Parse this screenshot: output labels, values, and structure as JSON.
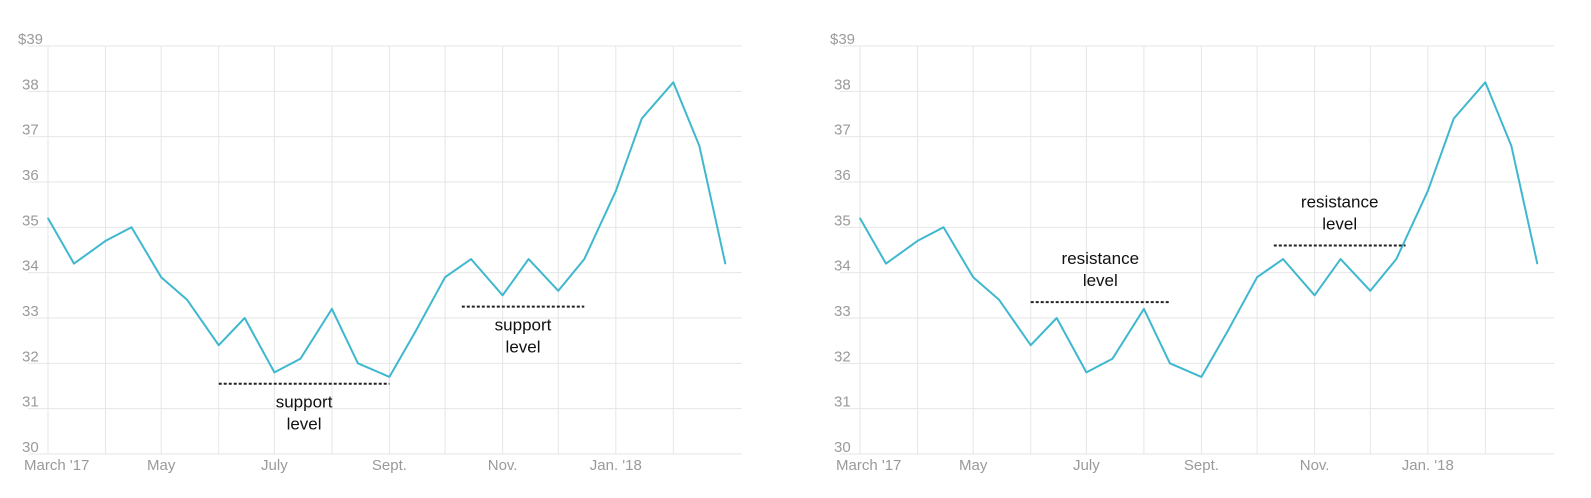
{
  "chart_data": [
    {
      "type": "line",
      "y_tick_labels": [
        "$39",
        "38",
        "37",
        "36",
        "35",
        "34",
        "33",
        "32",
        "31",
        "30"
      ],
      "x_tick_labels": [
        "March '17",
        "May",
        "July",
        "Sept.",
        "Nov.",
        "Jan. '18"
      ],
      "ylim": [
        30,
        39
      ],
      "grid": true,
      "line_color": "#3fb8cf",
      "x": [
        "2017-03-01",
        "2017-03-15",
        "2017-04-01",
        "2017-04-15",
        "2017-05-01",
        "2017-05-15",
        "2017-06-01",
        "2017-06-15",
        "2017-07-01",
        "2017-07-15",
        "2017-08-01",
        "2017-08-15",
        "2017-09-01",
        "2017-09-15",
        "2017-10-01",
        "2017-10-15",
        "2017-11-01",
        "2017-11-15",
        "2017-12-01",
        "2017-12-15",
        "2018-01-01",
        "2018-01-15",
        "2018-02-01",
        "2018-02-15",
        "2018-03-01"
      ],
      "values": [
        35.2,
        34.2,
        34.7,
        35.0,
        33.9,
        33.4,
        32.4,
        33.0,
        31.8,
        32.1,
        33.2,
        32.0,
        31.7,
        32.7,
        33.9,
        34.3,
        33.5,
        34.3,
        33.6,
        34.3,
        35.8,
        37.4,
        38.2,
        36.8,
        34.2
      ],
      "annotations": [
        {
          "label_line1": "support",
          "label_line2": "level",
          "y": 31.55,
          "x_start": "2017-06-01",
          "x_end": "2017-09-01"
        },
        {
          "label_line1": "support",
          "label_line2": "level",
          "y": 33.25,
          "x_start": "2017-10-10",
          "x_end": "2017-12-15"
        }
      ]
    },
    {
      "type": "line",
      "y_tick_labels": [
        "$39",
        "38",
        "37",
        "36",
        "35",
        "34",
        "33",
        "32",
        "31",
        "30"
      ],
      "x_tick_labels": [
        "March '17",
        "May",
        "July",
        "Sept.",
        "Nov.",
        "Jan. '18"
      ],
      "ylim": [
        30,
        39
      ],
      "grid": true,
      "line_color": "#3fb8cf",
      "x": [
        "2017-03-01",
        "2017-03-15",
        "2017-04-01",
        "2017-04-15",
        "2017-05-01",
        "2017-05-15",
        "2017-06-01",
        "2017-06-15",
        "2017-07-01",
        "2017-07-15",
        "2017-08-01",
        "2017-08-15",
        "2017-09-01",
        "2017-09-15",
        "2017-10-01",
        "2017-10-15",
        "2017-11-01",
        "2017-11-15",
        "2017-12-01",
        "2017-12-15",
        "2018-01-01",
        "2018-01-15",
        "2018-02-01",
        "2018-02-15",
        "2018-03-01"
      ],
      "values": [
        35.2,
        34.2,
        34.7,
        35.0,
        33.9,
        33.4,
        32.4,
        33.0,
        31.8,
        32.1,
        33.2,
        32.0,
        31.7,
        32.7,
        33.9,
        34.3,
        33.5,
        34.3,
        33.6,
        34.3,
        35.8,
        37.4,
        38.2,
        36.8,
        34.2
      ],
      "annotations": [
        {
          "label_line1": "resistance",
          "label_line2": "level",
          "y": 33.35,
          "x_start": "2017-06-01",
          "x_end": "2017-08-15"
        },
        {
          "label_line1": "resistance",
          "label_line2": "level",
          "y": 34.6,
          "x_start": "2017-10-10",
          "x_end": "2017-12-20"
        }
      ]
    }
  ]
}
